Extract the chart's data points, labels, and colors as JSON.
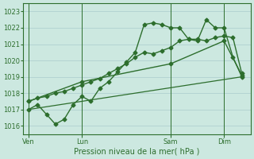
{
  "bg_color": "#cce8e0",
  "grid_color": "#aacccc",
  "line_color": "#2d6e2d",
  "title": "Pression niveau de la mer( hPa )",
  "ylim": [
    1015.5,
    1023.5
  ],
  "yticks": [
    1016,
    1017,
    1018,
    1019,
    1020,
    1021,
    1022,
    1023
  ],
  "xtick_labels": [
    "Ven",
    "Lun",
    "Sam",
    "Dim"
  ],
  "xtick_positions": [
    0,
    3,
    8,
    11
  ],
  "vlines": [
    0,
    3,
    8,
    11
  ],
  "series": [
    {
      "x": [
        0,
        0.5,
        1,
        1.5,
        2,
        2.5,
        3,
        3.5,
        4,
        4.5,
        5,
        5.5,
        6,
        6.5,
        7,
        7.5,
        8,
        8.5,
        9,
        9.5,
        10,
        10.5,
        11,
        11.5,
        12
      ],
      "y": [
        1017.0,
        1017.3,
        1016.7,
        1016.1,
        1016.4,
        1017.3,
        1017.8,
        1017.5,
        1018.3,
        1018.7,
        1019.3,
        1019.9,
        1020.5,
        1022.2,
        1022.3,
        1022.2,
        1022.0,
        1022.0,
        1021.3,
        1021.2,
        1022.5,
        1022.0,
        1022.0,
        1020.2,
        1019.0
      ],
      "marker": "D",
      "markersize": 2.5,
      "linewidth": 1.0
    },
    {
      "x": [
        0,
        0.5,
        1,
        1.5,
        2,
        2.5,
        3,
        3.5,
        4,
        4.5,
        5,
        5.5,
        6,
        6.5,
        7,
        7.5,
        8,
        8.5,
        9,
        9.5,
        10,
        10.5,
        11,
        11.5,
        12
      ],
      "y": [
        1017.5,
        1017.7,
        1017.8,
        1018.0,
        1018.1,
        1018.3,
        1018.5,
        1018.7,
        1018.9,
        1019.2,
        1019.5,
        1019.8,
        1020.2,
        1020.5,
        1020.4,
        1020.6,
        1020.8,
        1021.2,
        1021.3,
        1021.3,
        1021.2,
        1021.4,
        1021.5,
        1021.4,
        1019.2
      ],
      "marker": "D",
      "markersize": 2.5,
      "linewidth": 1.0
    },
    {
      "x": [
        0,
        12
      ],
      "y": [
        1017.0,
        1019.0
      ],
      "marker": null,
      "markersize": 0,
      "linewidth": 0.9
    },
    {
      "x": [
        0,
        3,
        8,
        11,
        12
      ],
      "y": [
        1017.5,
        1018.7,
        1019.8,
        1021.2,
        1019.1
      ],
      "marker": "D",
      "markersize": 2.5,
      "linewidth": 1.0
    }
  ]
}
